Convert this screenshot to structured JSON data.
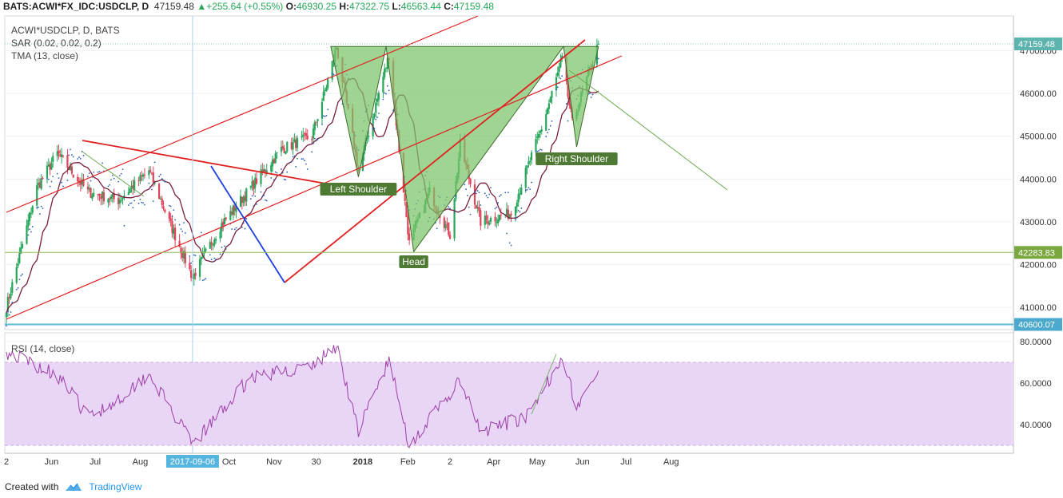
{
  "header": {
    "symbol": "BATS:ACWI*FX_IDC:USDCLP, D",
    "last": "47159.48",
    "change": "+255.64 (+0.55%)",
    "o_label": "O:",
    "o": "46930.25",
    "h_label": "H:",
    "h": "47322.75",
    "l_label": "L:",
    "l": "46563.44",
    "c_label": "C:",
    "c": "47159.48"
  },
  "legend": {
    "line1": "ACWI*USDCLP, D, BATS",
    "line2": "SAR (0.02, 0.02, 0.2)",
    "line3": "TMA (13, close)"
  },
  "footer": {
    "created_with": "Created with",
    "brand": "TradingView"
  },
  "colors": {
    "up": "#26a65b",
    "down": "#e0445a",
    "sar": "#2b5fb8",
    "tma": "#7a1f3c",
    "pattern_fill": "#7cc46a",
    "channel": "#e02020",
    "rsi": "#9c3fa8",
    "rsi_band": "#e9d5f5"
  },
  "chart_data": [
    {
      "type": "candlestick",
      "title": "ACWI*USDCLP, D, BATS",
      "indicators": [
        "SAR (0.02, 0.02, 0.2)",
        "TMA (13, close)"
      ],
      "x_ticks": [
        "2",
        "Jun",
        "Jul",
        "Aug",
        "2017-09-06",
        "Oct",
        "Nov",
        "30",
        "2018",
        "Feb",
        "2",
        "Apr",
        "May",
        "Jun",
        "Jul",
        "Aug"
      ],
      "y_ticks": [
        "41000.00",
        "42000.00",
        "43000.00",
        "44000.00",
        "45000.00",
        "46000.00",
        "47000.00"
      ],
      "ylim": [
        40500,
        47450
      ],
      "close_path_key_points": [
        {
          "date": "2017-05-01",
          "close": 41000
        },
        {
          "date": "2017-05-22",
          "close": 43800
        },
        {
          "date": "2017-06-05",
          "close": 44600
        },
        {
          "date": "2017-06-26",
          "close": 43700
        },
        {
          "date": "2017-07-17",
          "close": 43500
        },
        {
          "date": "2017-08-07",
          "close": 44200
        },
        {
          "date": "2017-08-21",
          "close": 43000
        },
        {
          "date": "2017-09-06",
          "close": 41700
        },
        {
          "date": "2017-09-25",
          "close": 42900
        },
        {
          "date": "2017-10-16",
          "close": 43800
        },
        {
          "date": "2017-11-06",
          "close": 44700
        },
        {
          "date": "2017-11-27",
          "close": 45000
        },
        {
          "date": "2017-12-08",
          "close": 46300
        },
        {
          "date": "2017-12-14",
          "close": 47100
        },
        {
          "date": "2017-12-29",
          "close": 44200
        },
        {
          "date": "2018-01-19",
          "close": 46900
        },
        {
          "date": "2018-02-02",
          "close": 42500
        },
        {
          "date": "2018-02-16",
          "close": 43700
        },
        {
          "date": "2018-03-02",
          "close": 42700
        },
        {
          "date": "2018-03-09",
          "close": 44800
        },
        {
          "date": "2018-03-23",
          "close": 43000
        },
        {
          "date": "2018-04-13",
          "close": 43200
        },
        {
          "date": "2018-05-04",
          "close": 45200
        },
        {
          "date": "2018-05-18",
          "close": 46800
        },
        {
          "date": "2018-05-25",
          "close": 45300
        },
        {
          "date": "2018-06-12",
          "close": 47159.48
        }
      ],
      "price_labels": [
        {
          "value": 47159.48,
          "text": "47159.48"
        },
        {
          "value": 42283.83,
          "text": "42283.83"
        },
        {
          "value": 40600.07,
          "text": "40600.07"
        }
      ],
      "annotations": [
        "Left Shoulder",
        "Head",
        "Right Shoulder"
      ],
      "pattern": "inverse head and shoulders",
      "pattern_points": [
        {
          "label": "Left Shoulder",
          "date": "2017-12-29",
          "close": 44050
        },
        {
          "label": "Head",
          "date": "2018-02-05",
          "close": 42300
        },
        {
          "label": "Right Shoulder",
          "date": "2018-05-28",
          "close": 44750
        },
        {
          "label": "Neckline",
          "close": 47100
        }
      ]
    },
    {
      "type": "line",
      "title": "RSI (14, close)",
      "y_ticks": [
        "40.0000",
        "60.0000",
        "80.0000"
      ],
      "ylim": [
        27,
        82
      ],
      "overbought": 70,
      "oversold": 30,
      "key_points": [
        {
          "date": "2017-05-01",
          "value": 75
        },
        {
          "date": "2017-06-05",
          "value": 64
        },
        {
          "date": "2017-06-26",
          "value": 44
        },
        {
          "date": "2017-07-17",
          "value": 52
        },
        {
          "date": "2017-08-07",
          "value": 65
        },
        {
          "date": "2017-09-06",
          "value": 30
        },
        {
          "date": "2017-10-16",
          "value": 63
        },
        {
          "date": "2017-11-27",
          "value": 68
        },
        {
          "date": "2017-12-14",
          "value": 78
        },
        {
          "date": "2017-12-29",
          "value": 37
        },
        {
          "date": "2018-01-19",
          "value": 71
        },
        {
          "date": "2018-02-02",
          "value": 30
        },
        {
          "date": "2018-03-09",
          "value": 61
        },
        {
          "date": "2018-03-23",
          "value": 36
        },
        {
          "date": "2018-04-27",
          "value": 45
        },
        {
          "date": "2018-05-18",
          "value": 74
        },
        {
          "date": "2018-05-28",
          "value": 48
        },
        {
          "date": "2018-06-12",
          "value": 66
        }
      ]
    }
  ]
}
